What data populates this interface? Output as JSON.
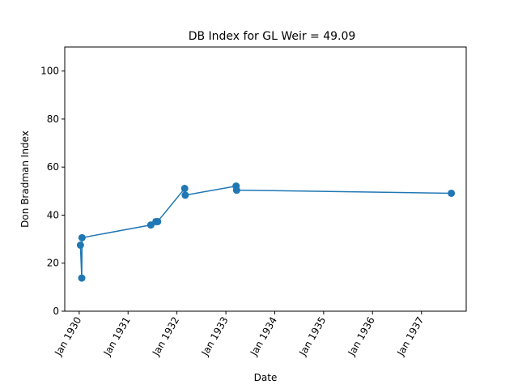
{
  "chart_data": {
    "type": "line",
    "title": "DB Index for GL Weir = 49.09",
    "xlabel": "Date",
    "ylabel": "Don Bradman Index",
    "ylim": [
      0,
      110
    ],
    "xlim": [
      "1929-09-15",
      "1937-12-01"
    ],
    "y_ticks": [
      0,
      20,
      40,
      60,
      80,
      100
    ],
    "x_ticks": [
      {
        "date": "1930-01-01",
        "label": "Jan 1930"
      },
      {
        "date": "1931-01-01",
        "label": "Jan 1931"
      },
      {
        "date": "1932-01-01",
        "label": "Jan 1932"
      },
      {
        "date": "1933-01-01",
        "label": "Jan 1933"
      },
      {
        "date": "1934-01-01",
        "label": "Jan 1934"
      },
      {
        "date": "1935-01-01",
        "label": "Jan 1935"
      },
      {
        "date": "1936-01-01",
        "label": "Jan 1936"
      },
      {
        "date": "1937-01-01",
        "label": "Jan 1937"
      }
    ],
    "grid": false,
    "series": [
      {
        "color": "#1f77b4",
        "points": [
          {
            "x": "1930-01-10",
            "y": 27.5
          },
          {
            "x": "1930-01-20",
            "y": 13.8
          },
          {
            "x": "1930-01-22",
            "y": 30.6
          },
          {
            "x": "1931-06-20",
            "y": 35.9
          },
          {
            "x": "1931-07-28",
            "y": 37.3
          },
          {
            "x": "1931-08-10",
            "y": 37.3
          },
          {
            "x": "1932-02-28",
            "y": 51.1
          },
          {
            "x": "1932-03-03",
            "y": 48.3
          },
          {
            "x": "1933-03-18",
            "y": 52.1
          },
          {
            "x": "1933-03-22",
            "y": 50.4
          },
          {
            "x": "1937-08-12",
            "y": 49.1
          }
        ]
      }
    ]
  }
}
